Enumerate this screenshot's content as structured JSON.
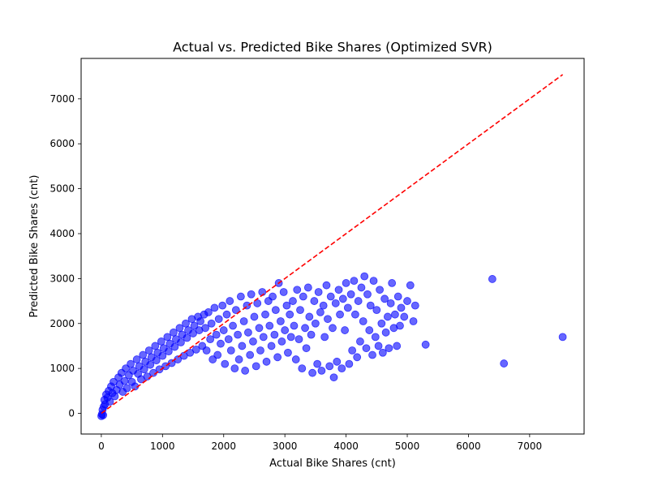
{
  "chart_data": {
    "type": "scatter",
    "title": "Actual vs. Predicted Bike Shares (Optimized SVR)",
    "xlabel": "Actual Bike Shares (cnt)",
    "ylabel": "Predicted Bike Shares (cnt)",
    "xlim": [
      -330,
      7890
    ],
    "ylim": [
      -460,
      7900
    ],
    "xticks": [
      0,
      1000,
      2000,
      3000,
      4000,
      5000,
      6000,
      7000
    ],
    "yticks": [
      0,
      1000,
      2000,
      3000,
      4000,
      5000,
      6000,
      7000
    ],
    "grid": false,
    "colors": {
      "points": "#0000ff",
      "reference_line": "#ff0000"
    },
    "reference_line": {
      "style": "dashed",
      "from": [
        1,
        1
      ],
      "to": [
        7540,
        7540
      ]
    },
    "series": [
      {
        "points": [
          [
            1,
            -60
          ],
          [
            10,
            -20
          ],
          [
            20,
            80
          ],
          [
            30,
            -40
          ],
          [
            40,
            150
          ],
          [
            50,
            300
          ],
          [
            60,
            200
          ],
          [
            80,
            420
          ],
          [
            100,
            350
          ],
          [
            120,
            500
          ],
          [
            140,
            260
          ],
          [
            160,
            600
          ],
          [
            180,
            450
          ],
          [
            200,
            700
          ],
          [
            220,
            380
          ],
          [
            250,
            520
          ],
          [
            280,
            800
          ],
          [
            300,
            640
          ],
          [
            330,
            900
          ],
          [
            350,
            480
          ],
          [
            380,
            720
          ],
          [
            400,
            1000
          ],
          [
            420,
            560
          ],
          [
            450,
            850
          ],
          [
            480,
            1100
          ],
          [
            500,
            700
          ],
          [
            520,
            950
          ],
          [
            550,
            600
          ],
          [
            580,
            1200
          ],
          [
            600,
            880
          ],
          [
            620,
            1050
          ],
          [
            650,
            760
          ],
          [
            680,
            1300
          ],
          [
            700,
            980
          ],
          [
            720,
            1150
          ],
          [
            750,
            820
          ],
          [
            780,
            1400
          ],
          [
            800,
            1080
          ],
          [
            820,
            1250
          ],
          [
            850,
            900
          ],
          [
            880,
            1500
          ],
          [
            900,
            1180
          ],
          [
            920,
            1350
          ],
          [
            950,
            980
          ],
          [
            980,
            1600
          ],
          [
            1000,
            1280
          ],
          [
            1020,
            1450
          ],
          [
            1050,
            1050
          ],
          [
            1080,
            1700
          ],
          [
            1100,
            1380
          ],
          [
            1120,
            1550
          ],
          [
            1150,
            1120
          ],
          [
            1180,
            1800
          ],
          [
            1200,
            1480
          ],
          [
            1220,
            1650
          ],
          [
            1250,
            1200
          ],
          [
            1280,
            1900
          ],
          [
            1300,
            1580
          ],
          [
            1320,
            1750
          ],
          [
            1350,
            1280
          ],
          [
            1380,
            2000
          ],
          [
            1400,
            1680
          ],
          [
            1420,
            1850
          ],
          [
            1450,
            1350
          ],
          [
            1480,
            2100
          ],
          [
            1500,
            1780
          ],
          [
            1520,
            1950
          ],
          [
            1550,
            1420
          ],
          [
            1580,
            2150
          ],
          [
            1600,
            1850
          ],
          [
            1620,
            2050
          ],
          [
            1650,
            1500
          ],
          [
            1680,
            2200
          ],
          [
            1700,
            1900
          ],
          [
            1720,
            1400
          ],
          [
            1750,
            2250
          ],
          [
            1780,
            1650
          ],
          [
            1800,
            2000
          ],
          [
            1820,
            1200
          ],
          [
            1850,
            2350
          ],
          [
            1880,
            1750
          ],
          [
            1900,
            1300
          ],
          [
            1920,
            2100
          ],
          [
            1950,
            1550
          ],
          [
            1980,
            2400
          ],
          [
            2000,
            1850
          ],
          [
            2020,
            1100
          ],
          [
            2050,
            2200
          ],
          [
            2080,
            1650
          ],
          [
            2100,
            2500
          ],
          [
            2120,
            1400
          ],
          [
            2150,
            1950
          ],
          [
            2180,
            1000
          ],
          [
            2200,
            2300
          ],
          [
            2230,
            1750
          ],
          [
            2250,
            1200
          ],
          [
            2280,
            2600
          ],
          [
            2300,
            1500
          ],
          [
            2330,
            2050
          ],
          [
            2350,
            950
          ],
          [
            2380,
            2400
          ],
          [
            2400,
            1800
          ],
          [
            2430,
            1300
          ],
          [
            2450,
            2650
          ],
          [
            2480,
            1600
          ],
          [
            2500,
            2150
          ],
          [
            2530,
            1050
          ],
          [
            2550,
            2450
          ],
          [
            2580,
            1900
          ],
          [
            2600,
            1400
          ],
          [
            2630,
            2700
          ],
          [
            2650,
            1700
          ],
          [
            2680,
            2200
          ],
          [
            2700,
            1150
          ],
          [
            2730,
            2500
          ],
          [
            2750,
            1950
          ],
          [
            2780,
            1500
          ],
          [
            2800,
            2600
          ],
          [
            2830,
            1750
          ],
          [
            2850,
            2300
          ],
          [
            2880,
            1250
          ],
          [
            2900,
            2900
          ],
          [
            2930,
            2050
          ],
          [
            2950,
            1600
          ],
          [
            2980,
            2700
          ],
          [
            3000,
            1850
          ],
          [
            3030,
            2400
          ],
          [
            3050,
            1350
          ],
          [
            3080,
            2200
          ],
          [
            3100,
            1700
          ],
          [
            3130,
            2500
          ],
          [
            3150,
            1950
          ],
          [
            3180,
            1200
          ],
          [
            3200,
            2750
          ],
          [
            3230,
            1650
          ],
          [
            3250,
            2300
          ],
          [
            3280,
            1000
          ],
          [
            3300,
            2600
          ],
          [
            3330,
            1900
          ],
          [
            3350,
            1450
          ],
          [
            3380,
            2800
          ],
          [
            3400,
            2150
          ],
          [
            3430,
            1750
          ],
          [
            3450,
            900
          ],
          [
            3480,
            2500
          ],
          [
            3500,
            2000
          ],
          [
            3530,
            1100
          ],
          [
            3550,
            2700
          ],
          [
            3580,
            2250
          ],
          [
            3600,
            950
          ],
          [
            3630,
            2400
          ],
          [
            3650,
            1700
          ],
          [
            3680,
            2850
          ],
          [
            3700,
            2100
          ],
          [
            3730,
            1050
          ],
          [
            3750,
            2600
          ],
          [
            3780,
            1900
          ],
          [
            3800,
            800
          ],
          [
            3830,
            2450
          ],
          [
            3850,
            1150
          ],
          [
            3880,
            2750
          ],
          [
            3900,
            2200
          ],
          [
            3930,
            1000
          ],
          [
            3950,
            2550
          ],
          [
            3980,
            1850
          ],
          [
            4000,
            2900
          ],
          [
            4030,
            2350
          ],
          [
            4050,
            1100
          ],
          [
            4080,
            2650
          ],
          [
            4100,
            1400
          ],
          [
            4130,
            2950
          ],
          [
            4150,
            2200
          ],
          [
            4180,
            1250
          ],
          [
            4200,
            2500
          ],
          [
            4230,
            1600
          ],
          [
            4250,
            2800
          ],
          [
            4280,
            2050
          ],
          [
            4300,
            3050
          ],
          [
            4330,
            1450
          ],
          [
            4350,
            2650
          ],
          [
            4380,
            1850
          ],
          [
            4400,
            2400
          ],
          [
            4430,
            1300
          ],
          [
            4450,
            2950
          ],
          [
            4480,
            1700
          ],
          [
            4500,
            2300
          ],
          [
            4530,
            1500
          ],
          [
            4550,
            2750
          ],
          [
            4580,
            2000
          ],
          [
            4600,
            1350
          ],
          [
            4630,
            2550
          ],
          [
            4650,
            1800
          ],
          [
            4680,
            2150
          ],
          [
            4700,
            1450
          ],
          [
            4730,
            2450
          ],
          [
            4750,
            2900
          ],
          [
            4780,
            1900
          ],
          [
            4800,
            2200
          ],
          [
            4830,
            1500
          ],
          [
            4850,
            2600
          ],
          [
            4880,
            1950
          ],
          [
            4900,
            2350
          ],
          [
            4950,
            2150
          ],
          [
            5000,
            2500
          ],
          [
            5050,
            2850
          ],
          [
            5100,
            2050
          ],
          [
            5130,
            2400
          ],
          [
            5300,
            1530
          ],
          [
            6390,
            2990
          ],
          [
            6580,
            1110
          ],
          [
            7540,
            1700
          ]
        ]
      }
    ]
  }
}
